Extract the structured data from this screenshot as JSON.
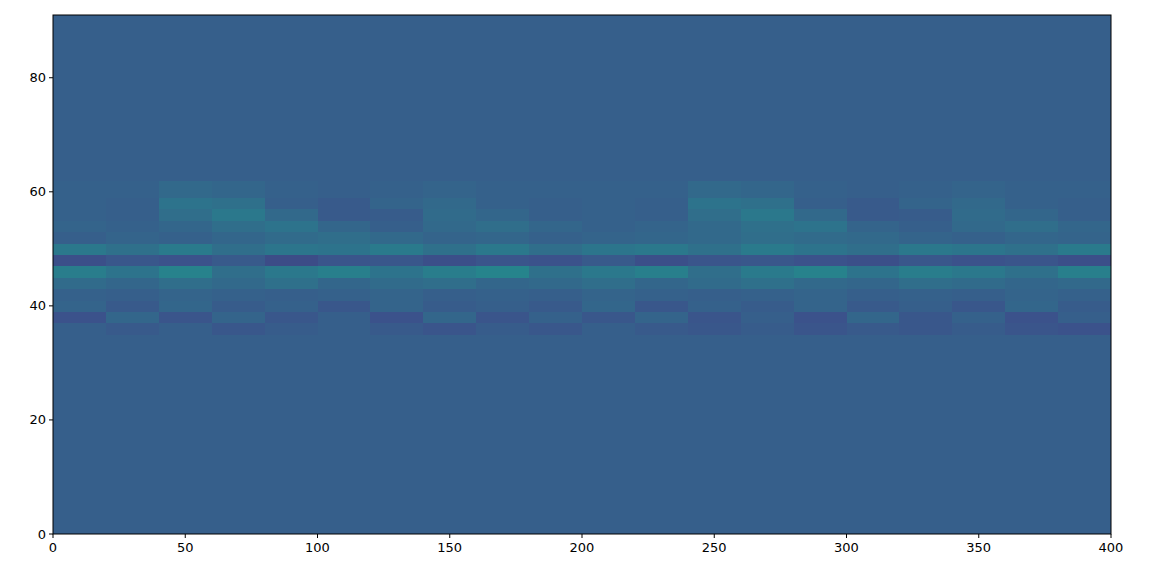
{
  "chart_data": {
    "type": "heatmap",
    "xlim": [
      0,
      400
    ],
    "ylim": [
      0,
      91
    ],
    "xticks": [
      0,
      50,
      100,
      150,
      200,
      250,
      300,
      350,
      400
    ],
    "yticks": [
      0,
      20,
      40,
      60,
      80
    ],
    "xbins": [
      0,
      20,
      40,
      60,
      80,
      100,
      120,
      140,
      160,
      180,
      200,
      220,
      240,
      260,
      280,
      300,
      320,
      340,
      360,
      380,
      400
    ],
    "ybins": [
      0,
      35,
      37,
      39,
      41,
      43,
      45,
      47,
      49,
      51,
      53,
      55,
      57,
      59,
      62,
      91
    ],
    "color_range": [
      0,
      1
    ],
    "z": [
      [
        0.3,
        0.3,
        0.3,
        0.3,
        0.3,
        0.3,
        0.3,
        0.3,
        0.3,
        0.3,
        0.3,
        0.3,
        0.3,
        0.3,
        0.3,
        0.3,
        0.3,
        0.3,
        0.3,
        0.3
      ],
      [
        0.3,
        0.28,
        0.3,
        0.27,
        0.29,
        0.3,
        0.28,
        0.26,
        0.29,
        0.27,
        0.3,
        0.28,
        0.27,
        0.29,
        0.26,
        0.28,
        0.27,
        0.29,
        0.26,
        0.25
      ],
      [
        0.25,
        0.33,
        0.26,
        0.32,
        0.27,
        0.3,
        0.25,
        0.33,
        0.26,
        0.31,
        0.27,
        0.32,
        0.26,
        0.3,
        0.25,
        0.33,
        0.27,
        0.31,
        0.25,
        0.3
      ],
      [
        0.32,
        0.28,
        0.33,
        0.29,
        0.31,
        0.27,
        0.32,
        0.29,
        0.3,
        0.28,
        0.33,
        0.27,
        0.31,
        0.29,
        0.32,
        0.28,
        0.3,
        0.27,
        0.33,
        0.29
      ],
      [
        0.31,
        0.3,
        0.32,
        0.31,
        0.3,
        0.31,
        0.32,
        0.3,
        0.31,
        0.3,
        0.32,
        0.31,
        0.3,
        0.31,
        0.32,
        0.3,
        0.31,
        0.3,
        0.32,
        0.31
      ],
      [
        0.35,
        0.33,
        0.36,
        0.34,
        0.37,
        0.33,
        0.35,
        0.36,
        0.33,
        0.34,
        0.36,
        0.33,
        0.35,
        0.37,
        0.34,
        0.33,
        0.36,
        0.35,
        0.33,
        0.34
      ],
      [
        0.42,
        0.38,
        0.44,
        0.36,
        0.4,
        0.43,
        0.38,
        0.42,
        0.45,
        0.37,
        0.4,
        0.43,
        0.36,
        0.41,
        0.44,
        0.38,
        0.42,
        0.4,
        0.37,
        0.43
      ],
      [
        0.24,
        0.27,
        0.25,
        0.28,
        0.23,
        0.26,
        0.27,
        0.24,
        0.26,
        0.25,
        0.28,
        0.24,
        0.26,
        0.27,
        0.25,
        0.24,
        0.27,
        0.25,
        0.26,
        0.24
      ],
      [
        0.4,
        0.37,
        0.41,
        0.36,
        0.39,
        0.38,
        0.41,
        0.37,
        0.4,
        0.36,
        0.39,
        0.4,
        0.37,
        0.41,
        0.38,
        0.36,
        0.4,
        0.39,
        0.37,
        0.41
      ],
      [
        0.3,
        0.32,
        0.31,
        0.33,
        0.35,
        0.36,
        0.34,
        0.32,
        0.33,
        0.31,
        0.32,
        0.33,
        0.34,
        0.36,
        0.35,
        0.34,
        0.32,
        0.31,
        0.33,
        0.32
      ],
      [
        0.32,
        0.31,
        0.33,
        0.36,
        0.38,
        0.33,
        0.3,
        0.34,
        0.36,
        0.33,
        0.31,
        0.32,
        0.34,
        0.37,
        0.38,
        0.32,
        0.3,
        0.34,
        0.36,
        0.33
      ],
      [
        0.31,
        0.3,
        0.36,
        0.4,
        0.34,
        0.28,
        0.29,
        0.35,
        0.33,
        0.3,
        0.31,
        0.3,
        0.36,
        0.4,
        0.34,
        0.28,
        0.29,
        0.35,
        0.33,
        0.3
      ],
      [
        0.31,
        0.3,
        0.38,
        0.37,
        0.3,
        0.28,
        0.32,
        0.34,
        0.31,
        0.3,
        0.31,
        0.3,
        0.38,
        0.37,
        0.3,
        0.28,
        0.32,
        0.34,
        0.31,
        0.3
      ],
      [
        0.31,
        0.31,
        0.34,
        0.33,
        0.31,
        0.3,
        0.31,
        0.32,
        0.31,
        0.31,
        0.31,
        0.31,
        0.34,
        0.33,
        0.31,
        0.3,
        0.31,
        0.32,
        0.31,
        0.31
      ],
      [
        0.3,
        0.3,
        0.3,
        0.3,
        0.3,
        0.3,
        0.3,
        0.3,
        0.3,
        0.3,
        0.3,
        0.3,
        0.3,
        0.3,
        0.3,
        0.3,
        0.3,
        0.3,
        0.3,
        0.3
      ]
    ]
  }
}
